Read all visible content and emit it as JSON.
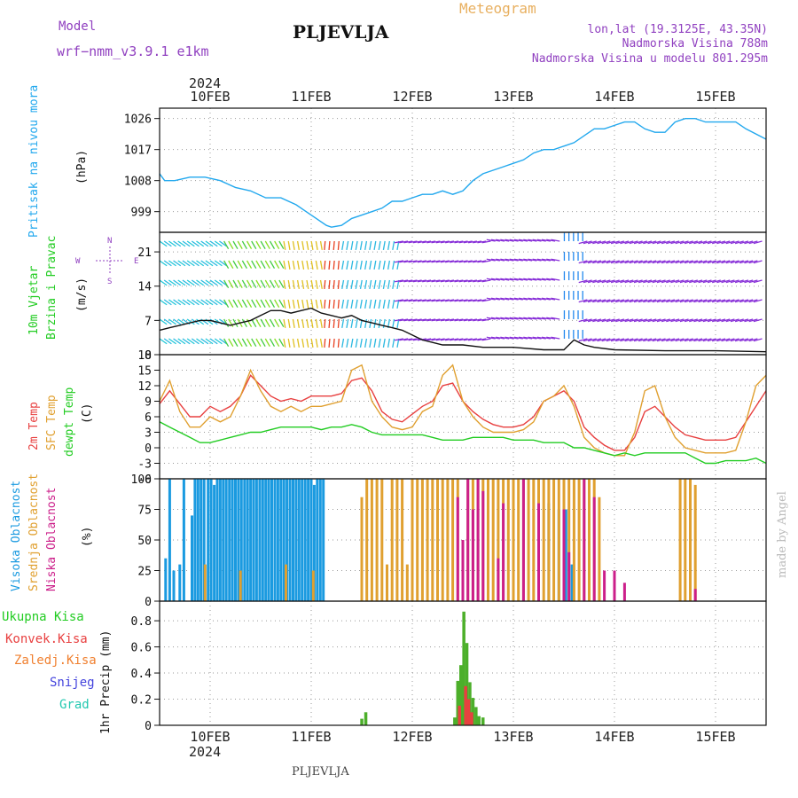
{
  "header": {
    "model_label": "Model",
    "model_name": "wrf−nmm_v3.9.1  e1km",
    "station_title": "PLJEVLJA",
    "product": "Meteogram",
    "lonlat": "lon,lat (19.3125E, 43.35N)",
    "elevation": "Nadmorska Visina 788m",
    "elevation_model": "Nadmorska Visina u modelu 801.295m",
    "year_label": "2024",
    "footer_station": "PLJEVLJA",
    "credit": "made by Angel"
  },
  "dates": [
    "10FEB",
    "11FEB",
    "12FEB",
    "13FEB",
    "14FEB",
    "15FEB"
  ],
  "labels": {
    "pressure_title": "Pritisak na nivou mora",
    "pressure_unit": "(hPa)",
    "wind_title1": "10m Vjetar",
    "wind_title2": "Brzina i Pravac",
    "wind_unit": "(m/s)",
    "temp_t2": "2m Temp",
    "temp_sfc": "SFC Temp",
    "temp_dew": "dewpt Temp",
    "temp_unit": "(C)",
    "cloud_high": "Visoka Oblacnost",
    "cloud_mid": "Srednja Oblacnost",
    "cloud_low": "Niska Oblacnost",
    "cloud_unit": "(%)",
    "precip_total": "Ukupna Kisa",
    "precip_conv": "Konvek.Kisa",
    "precip_frz": "Zaledj.Kisa",
    "precip_snow": "Snijeg",
    "precip_graup": "Grad",
    "precip_unit": "1hr Precip (mm)",
    "compass": {
      "n": "N",
      "s": "S",
      "w": "W",
      "e": "E"
    }
  },
  "colors": {
    "pressure": "#22a8ee",
    "t2": "#e84040",
    "sfc": "#e0a030",
    "dew": "#22cc22",
    "high": "#1a9ae0",
    "mid": "#e0a030",
    "low": "#cc1f8a",
    "precip": "#4caf2a",
    "conv": "#e84040",
    "frz": "#f08030",
    "snow": "#4444dd",
    "graup": "#22c8b0",
    "title": "#9040c0",
    "meteogram": "#e8b060"
  },
  "chart_data": [
    {
      "type": "line",
      "panel": "pressure",
      "x_unit": "days since 10FEB 00UTC",
      "ylim": [
        993,
        1029
      ],
      "yticks": [
        999,
        1008,
        1017,
        1026
      ],
      "series": [
        {
          "name": "Pritisak na nivou mora",
          "x": [
            -0.5,
            -0.45,
            -0.35,
            -0.2,
            -0.05,
            0.1,
            0.25,
            0.4,
            0.55,
            0.7,
            0.85,
            0.95,
            1.05,
            1.15,
            1.2,
            1.3,
            1.4,
            1.5,
            1.6,
            1.7,
            1.8,
            1.9,
            2.0,
            2.1,
            2.2,
            2.3,
            2.4,
            2.5,
            2.6,
            2.7,
            2.8,
            2.9,
            3.0,
            3.1,
            3.2,
            3.3,
            3.4,
            3.5,
            3.6,
            3.7,
            3.8,
            3.9,
            4.0,
            4.1,
            4.2,
            4.3,
            4.4,
            4.5,
            4.6,
            4.7,
            4.8,
            4.9,
            5.0,
            5.1,
            5.2,
            5.3,
            5.5
          ],
          "y": [
            1010,
            1008,
            1008,
            1009,
            1009,
            1008,
            1006,
            1005,
            1003,
            1003,
            1001,
            999,
            997,
            995,
            994.5,
            995,
            997,
            998,
            999,
            1000,
            1002,
            1002,
            1003,
            1004,
            1004,
            1005,
            1004,
            1005,
            1008,
            1010,
            1011,
            1012,
            1013,
            1014,
            1016,
            1017,
            1017,
            1018,
            1019,
            1021,
            1023,
            1023,
            1024,
            1025,
            1025,
            1023,
            1022,
            1022,
            1025,
            1026,
            1026,
            1025,
            1025,
            1025,
            1025,
            1023,
            1020
          ]
        }
      ]
    },
    {
      "type": "line",
      "panel": "wind",
      "ylim": [
        0,
        25
      ],
      "yticks": [
        0,
        7,
        14,
        21
      ],
      "series": [
        {
          "name": "10m Vjetar",
          "x": [
            -0.5,
            -0.4,
            -0.3,
            -0.2,
            -0.1,
            0.0,
            0.1,
            0.2,
            0.3,
            0.4,
            0.5,
            0.6,
            0.7,
            0.8,
            0.9,
            1.0,
            1.1,
            1.2,
            1.3,
            1.4,
            1.5,
            1.6,
            1.7,
            1.8,
            1.9,
            2.0,
            2.1,
            2.2,
            2.3,
            2.4,
            2.5,
            2.7,
            3.0,
            3.3,
            3.5,
            3.6,
            3.7,
            3.8,
            4.0,
            4.5,
            5.0,
            5.5
          ],
          "y": [
            5,
            5.5,
            6,
            6.5,
            7,
            7,
            6.5,
            6,
            6.5,
            7,
            8,
            9,
            9,
            8.5,
            9,
            9.5,
            8.5,
            8,
            7.5,
            8,
            7,
            6.5,
            6,
            5.5,
            5,
            4,
            3,
            2.5,
            2,
            2,
            2,
            1.5,
            1.5,
            1,
            1,
            3,
            2,
            1.5,
            1,
            0.8,
            0.8,
            0.6
          ]
        }
      ]
    },
    {
      "type": "line",
      "panel": "temperature",
      "ylim": [
        -6,
        18
      ],
      "yticks": [
        -6,
        -3,
        0,
        3,
        6,
        9,
        12,
        15,
        18
      ],
      "series": [
        {
          "name": "2m Temp",
          "x": [
            -0.5,
            -0.4,
            -0.3,
            -0.2,
            -0.1,
            0.0,
            0.1,
            0.2,
            0.3,
            0.4,
            0.5,
            0.6,
            0.7,
            0.8,
            0.9,
            1.0,
            1.1,
            1.2,
            1.3,
            1.4,
            1.5,
            1.6,
            1.7,
            1.8,
            1.9,
            2.0,
            2.1,
            2.2,
            2.3,
            2.4,
            2.5,
            2.6,
            2.7,
            2.8,
            2.9,
            3.0,
            3.1,
            3.2,
            3.3,
            3.4,
            3.5,
            3.6,
            3.7,
            3.8,
            3.9,
            4.0,
            4.1,
            4.2,
            4.3,
            4.4,
            4.5,
            4.6,
            4.7,
            4.8,
            4.9,
            5.0,
            5.1,
            5.2,
            5.3,
            5.4,
            5.5
          ],
          "y": [
            8.5,
            11,
            8.5,
            6,
            6,
            8,
            7,
            8,
            10,
            14,
            12,
            10,
            9,
            9.5,
            9,
            10,
            10,
            10,
            10.5,
            13,
            13.5,
            11,
            7,
            5.5,
            5,
            6.5,
            8,
            9,
            12,
            12.5,
            9,
            7,
            5.5,
            4.5,
            4,
            4,
            4.5,
            6,
            9,
            10,
            11,
            9,
            4,
            2,
            0.5,
            -0.5,
            -0.5,
            2,
            7,
            8,
            6,
            4,
            2.5,
            2,
            1.5,
            1.5,
            1.5,
            2,
            5,
            8,
            11
          ]
        },
        {
          "name": "SFC Temp",
          "x": [
            -0.5,
            -0.4,
            -0.3,
            -0.2,
            -0.1,
            0.0,
            0.1,
            0.2,
            0.3,
            0.4,
            0.5,
            0.6,
            0.7,
            0.8,
            0.9,
            1.0,
            1.1,
            1.2,
            1.3,
            1.4,
            1.5,
            1.6,
            1.7,
            1.8,
            1.9,
            2.0,
            2.1,
            2.2,
            2.3,
            2.4,
            2.5,
            2.6,
            2.7,
            2.8,
            2.9,
            3.0,
            3.1,
            3.2,
            3.3,
            3.4,
            3.5,
            3.6,
            3.7,
            3.8,
            3.9,
            4.0,
            4.1,
            4.2,
            4.3,
            4.4,
            4.5,
            4.6,
            4.7,
            4.8,
            4.9,
            5.0,
            5.1,
            5.2,
            5.3,
            5.4,
            5.5
          ],
          "y": [
            9,
            13,
            7,
            4,
            4,
            6,
            5,
            6,
            10,
            15,
            11,
            8,
            7,
            8,
            7,
            8,
            8,
            8.5,
            9,
            15,
            16,
            9,
            6,
            4,
            3.5,
            4,
            7,
            8,
            14,
            16,
            9,
            6,
            4,
            3,
            3,
            3,
            3.5,
            5,
            9,
            10,
            12,
            8,
            2,
            0,
            -1,
            -1.5,
            -1.5,
            3,
            11,
            12,
            6,
            2,
            0,
            -0.5,
            -1,
            -1,
            -1,
            -0.5,
            5,
            12,
            14
          ]
        },
        {
          "name": "dewpt Temp",
          "x": [
            -0.5,
            -0.4,
            -0.3,
            -0.2,
            -0.1,
            0.0,
            0.1,
            0.2,
            0.3,
            0.4,
            0.5,
            0.6,
            0.7,
            0.8,
            0.9,
            1.0,
            1.1,
            1.2,
            1.3,
            1.4,
            1.5,
            1.6,
            1.7,
            1.8,
            1.9,
            2.0,
            2.1,
            2.2,
            2.3,
            2.4,
            2.5,
            2.6,
            2.7,
            2.8,
            2.9,
            3.0,
            3.1,
            3.2,
            3.3,
            3.4,
            3.5,
            3.6,
            3.7,
            3.8,
            3.9,
            4.0,
            4.1,
            4.2,
            4.3,
            4.4,
            4.5,
            4.6,
            4.7,
            4.8,
            4.9,
            5.0,
            5.1,
            5.2,
            5.3,
            5.4,
            5.5
          ],
          "y": [
            5,
            4,
            3,
            2,
            1,
            1,
            1.5,
            2,
            2.5,
            3,
            3,
            3.5,
            4,
            4,
            4,
            4,
            3.5,
            4,
            4,
            4.5,
            4,
            3,
            2.5,
            2.5,
            2.5,
            2.5,
            2.5,
            2,
            1.5,
            1.5,
            1.5,
            2,
            2,
            2,
            2,
            1.5,
            1.5,
            1.5,
            1,
            1,
            1,
            0,
            0,
            -0.5,
            -1,
            -1.5,
            -1,
            -1.5,
            -1,
            -1,
            -1,
            -1,
            -1,
            -2,
            -3,
            -3,
            -2.5,
            -2.5,
            -2.5,
            -2,
            -3
          ]
        }
      ]
    },
    {
      "type": "bar",
      "panel": "clouds",
      "ylim": [
        0,
        100
      ],
      "yticks": [
        0,
        25,
        50,
        75,
        100
      ],
      "series": [
        {
          "name": "Visoka Oblacnost",
          "x": [
            -0.44,
            -0.4,
            -0.36,
            -0.3,
            -0.26,
            -0.18,
            -0.15,
            -0.12,
            -0.09,
            -0.06,
            -0.02,
            0.01,
            0.04,
            0.07,
            0.1,
            0.13,
            0.16,
            0.19,
            0.22,
            0.25,
            0.28,
            0.31,
            0.34,
            0.37,
            0.4,
            0.43,
            0.46,
            0.49,
            0.52,
            0.55,
            0.58,
            0.61,
            0.64,
            0.67,
            0.7,
            0.73,
            0.76,
            0.79,
            0.82,
            0.85,
            0.88,
            0.91,
            0.94,
            0.97,
            1.0,
            1.03,
            1.06,
            1.09,
            1.12,
            2.75,
            3.35,
            3.45,
            3.52,
            3.58
          ],
          "y": [
            35,
            100,
            25,
            30,
            100,
            70,
            100,
            100,
            100,
            100,
            100,
            100,
            95,
            100,
            100,
            100,
            100,
            100,
            100,
            100,
            100,
            100,
            100,
            100,
            100,
            100,
            100,
            100,
            100,
            100,
            100,
            100,
            100,
            100,
            100,
            100,
            100,
            100,
            100,
            100,
            100,
            100,
            100,
            100,
            100,
            95,
            100,
            100,
            100,
            30,
            80,
            75,
            75,
            30
          ]
        },
        {
          "name": "Srednja Oblacnost",
          "x": [
            -0.05,
            0.3,
            0.75,
            1.02,
            1.5,
            1.55,
            1.6,
            1.65,
            1.7,
            1.75,
            1.8,
            1.85,
            1.9,
            1.95,
            2.0,
            2.05,
            2.1,
            2.15,
            2.2,
            2.25,
            2.3,
            2.35,
            2.4,
            2.45,
            2.55,
            2.6,
            2.65,
            2.7,
            2.75,
            2.8,
            2.85,
            2.9,
            2.95,
            3.0,
            3.05,
            3.1,
            3.15,
            3.2,
            3.25,
            3.3,
            3.35,
            3.4,
            3.45,
            3.5,
            3.55,
            3.6,
            3.65,
            3.7,
            3.75,
            3.8,
            3.85,
            4.65,
            4.7,
            4.75,
            4.8
          ],
          "y": [
            30,
            25,
            30,
            25,
            85,
            100,
            100,
            100,
            100,
            30,
            100,
            100,
            100,
            30,
            100,
            100,
            100,
            100,
            100,
            100,
            100,
            100,
            100,
            100,
            100,
            100,
            100,
            100,
            100,
            100,
            100,
            100,
            100,
            100,
            100,
            100,
            100,
            100,
            100,
            100,
            100,
            100,
            100,
            100,
            100,
            100,
            100,
            100,
            100,
            100,
            85,
            100,
            100,
            100,
            95
          ]
        },
        {
          "name": "Niska Oblacnost",
          "x": [
            2.45,
            2.5,
            2.55,
            2.6,
            2.65,
            2.7,
            2.85,
            2.9,
            3.1,
            3.25,
            3.5,
            3.55,
            3.7,
            3.8,
            3.9,
            4.0,
            4.1,
            4.8
          ],
          "y": [
            85,
            50,
            100,
            75,
            100,
            90,
            35,
            80,
            100,
            80,
            75,
            40,
            100,
            85,
            25,
            25,
            15,
            10
          ]
        }
      ]
    },
    {
      "type": "bar",
      "panel": "precipitation",
      "ylim": [
        0,
        0.95
      ],
      "yticks": [
        0,
        0.2,
        0.4,
        0.6,
        0.8
      ],
      "series": [
        {
          "name": "Ukupna Kisa",
          "x": [
            1.5,
            1.54,
            2.42,
            2.45,
            2.48,
            2.51,
            2.54,
            2.57,
            2.6,
            2.63,
            2.66,
            2.7
          ],
          "y": [
            0.05,
            0.1,
            0.06,
            0.34,
            0.46,
            0.87,
            0.63,
            0.33,
            0.21,
            0.14,
            0.07,
            0.06
          ]
        },
        {
          "name": "Konvek.Kisa",
          "x": [
            2.45,
            2.51,
            2.54,
            2.57
          ],
          "y": [
            0.15,
            0.3,
            0.2,
            0.1
          ]
        }
      ]
    }
  ]
}
